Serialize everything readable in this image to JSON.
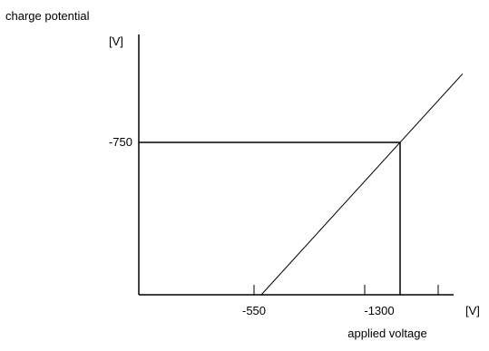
{
  "chart_data": {
    "type": "line",
    "ylabel": "charge potential",
    "y_unit": "[V]",
    "xlabel": "applied voltage",
    "x_unit": "[V]",
    "x_ticks": [
      -550,
      -1300
    ],
    "x_tick_labels": [
      "-550",
      "-1300"
    ],
    "y_ticks": [
      -750
    ],
    "y_tick_labels": [
      "-750"
    ],
    "grid": false,
    "series": [
      {
        "points": [
          {
            "x": -550,
            "y": 0
          },
          {
            "x": -1300,
            "y": -750
          }
        ]
      }
    ],
    "annotations": [
      {
        "type": "reference-lines",
        "x": -1300,
        "y": -750
      }
    ]
  }
}
